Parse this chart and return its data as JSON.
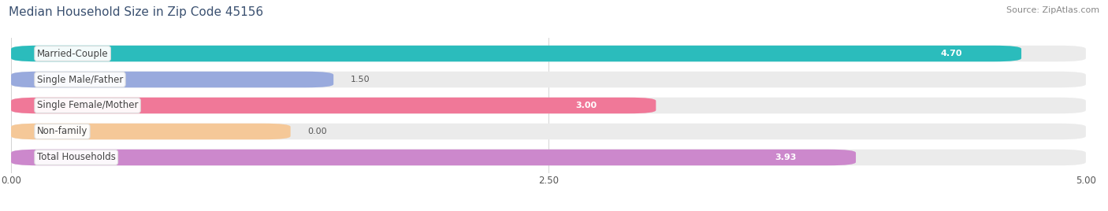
{
  "title": "Median Household Size in Zip Code 45156",
  "source": "Source: ZipAtlas.com",
  "categories": [
    "Married-Couple",
    "Single Male/Father",
    "Single Female/Mother",
    "Non-family",
    "Total Households"
  ],
  "values": [
    4.7,
    1.5,
    3.0,
    0.0,
    3.93
  ],
  "bar_colors": [
    "#2BBCBC",
    "#99AADD",
    "#F07898",
    "#F5C898",
    "#CC88CC"
  ],
  "bar_bg_color": "#EBEBEB",
  "xlim": [
    0,
    5.0
  ],
  "xticks": [
    0.0,
    2.5,
    5.0
  ],
  "xtick_labels": [
    "0.00",
    "2.50",
    "5.00"
  ],
  "title_color": "#3A5070",
  "title_fontsize": 11,
  "label_fontsize": 8.5,
  "value_fontsize": 8,
  "source_fontsize": 8,
  "bar_height": 0.62,
  "bar_gap": 0.15,
  "label_bg_color": "#FFFFFF",
  "label_text_color": "#444444",
  "nonfamily_bar_width": 1.3
}
